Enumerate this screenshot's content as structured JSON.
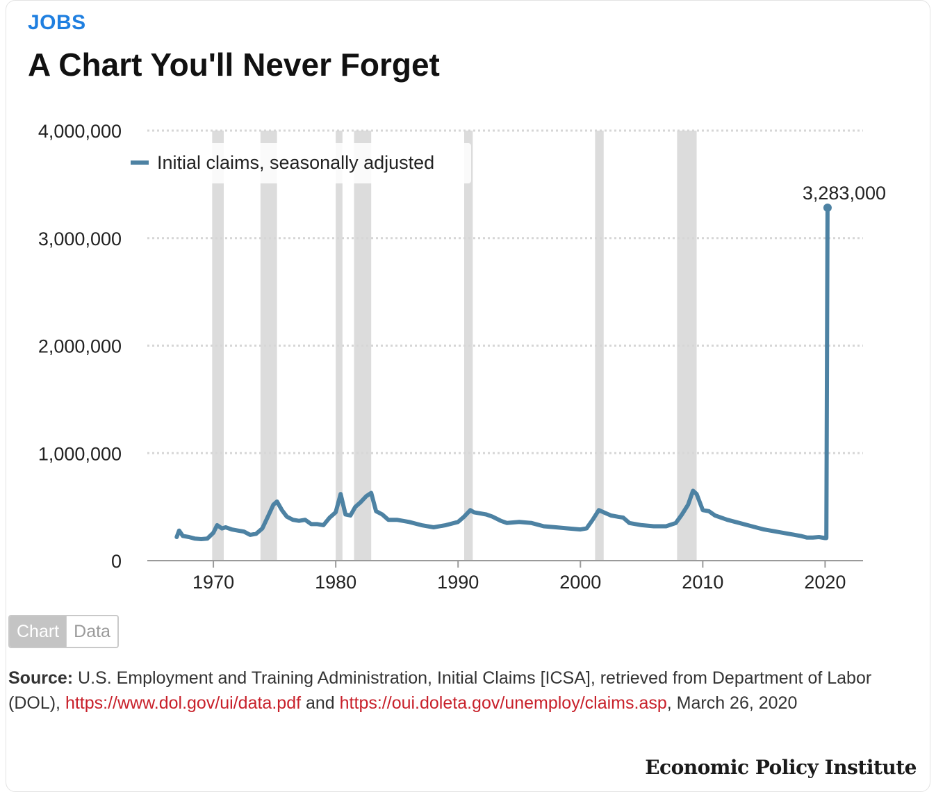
{
  "header": {
    "kicker": "JOBS",
    "title": "A Chart You'll Never Forget"
  },
  "toggle": {
    "chart_label": "Chart",
    "data_label": "Data"
  },
  "source": {
    "label": "Source:",
    "text1": " U.S. Employment and Training Administration, Initial Claims [ICSA], retrieved from Department of Labor (DOL), ",
    "link1": "https://www.dol.gov/ui/data.pdf",
    "text2": " and ",
    "link2": "https://oui.doleta.gov/unemploy/claims.asp",
    "text3": ", March 26, 2020"
  },
  "brand": "Economic Policy Institute",
  "colors": {
    "series": "#4d82a3",
    "recession": "#dcdcdc",
    "kicker": "#1f7fe0",
    "link": "#c8202a"
  },
  "chart_data": {
    "type": "line",
    "title": "",
    "xlabel": "",
    "ylabel": "",
    "xlim": [
      1964.6,
      2023.1
    ],
    "ylim": [
      0,
      4000000
    ],
    "x_ticks": [
      1970,
      1980,
      1990,
      2000,
      2010,
      2020
    ],
    "y_ticks": [
      0,
      1000000,
      2000000,
      3000000,
      4000000
    ],
    "y_tick_labels": [
      "0",
      "1,000,000",
      "2,000,000",
      "3,000,000",
      "4,000,000"
    ],
    "grid": "horizontal dotted",
    "legend": {
      "position": "top-left",
      "entries": [
        "Initial claims, seasonally adjusted"
      ]
    },
    "recessions": [
      [
        1969.9,
        1970.85
      ],
      [
        1973.85,
        1975.2
      ],
      [
        1980.0,
        1980.55
      ],
      [
        1981.5,
        1982.9
      ],
      [
        1990.5,
        1991.2
      ],
      [
        2001.2,
        2001.9
      ],
      [
        2007.9,
        2009.5
      ]
    ],
    "annotation": {
      "x": 2020.2,
      "y": 3283000,
      "label": "3,283,000"
    },
    "series": [
      {
        "name": "Initial claims, seasonally adjusted",
        "x": [
          1967.0,
          1967.2,
          1967.5,
          1968.0,
          1968.5,
          1969.0,
          1969.5,
          1970.0,
          1970.3,
          1970.7,
          1971.0,
          1971.5,
          1972.0,
          1972.5,
          1973.0,
          1973.5,
          1974.0,
          1974.5,
          1974.9,
          1975.2,
          1975.6,
          1976.0,
          1976.5,
          1977.0,
          1977.5,
          1978.0,
          1978.5,
          1979.0,
          1979.5,
          1980.0,
          1980.4,
          1980.8,
          1981.2,
          1981.6,
          1982.0,
          1982.5,
          1982.9,
          1983.3,
          1983.8,
          1984.3,
          1985.0,
          1986.0,
          1987.0,
          1988.0,
          1989.0,
          1990.0,
          1990.5,
          1991.0,
          1991.3,
          1991.8,
          1992.3,
          1992.8,
          1993.5,
          1994.0,
          1995.0,
          1996.0,
          1997.0,
          1998.0,
          1999.0,
          2000.0,
          2000.5,
          2001.0,
          2001.5,
          2001.9,
          2002.5,
          2003.0,
          2003.5,
          2004.0,
          2005.0,
          2006.0,
          2007.0,
          2007.8,
          2008.3,
          2008.8,
          2009.2,
          2009.5,
          2010.0,
          2010.5,
          2011.0,
          2012.0,
          2013.0,
          2014.0,
          2015.0,
          2016.0,
          2017.0,
          2018.0,
          2018.5,
          2019.0,
          2019.5,
          2020.0,
          2020.1,
          2020.15,
          2020.2
        ],
        "values": [
          220000,
          280000,
          230000,
          220000,
          205000,
          200000,
          205000,
          260000,
          330000,
          300000,
          310000,
          290000,
          280000,
          270000,
          240000,
          250000,
          300000,
          420000,
          520000,
          550000,
          470000,
          410000,
          380000,
          370000,
          380000,
          340000,
          340000,
          330000,
          400000,
          450000,
          620000,
          430000,
          420000,
          500000,
          540000,
          600000,
          630000,
          460000,
          430000,
          380000,
          380000,
          360000,
          330000,
          310000,
          330000,
          360000,
          410000,
          470000,
          450000,
          440000,
          430000,
          410000,
          370000,
          350000,
          360000,
          350000,
          320000,
          310000,
          300000,
          290000,
          300000,
          380000,
          470000,
          450000,
          420000,
          410000,
          400000,
          350000,
          330000,
          320000,
          320000,
          350000,
          430000,
          520000,
          650000,
          620000,
          470000,
          460000,
          420000,
          380000,
          350000,
          320000,
          290000,
          270000,
          250000,
          230000,
          215000,
          215000,
          220000,
          210000,
          210000,
          1800000,
          3283000
        ]
      }
    ]
  }
}
